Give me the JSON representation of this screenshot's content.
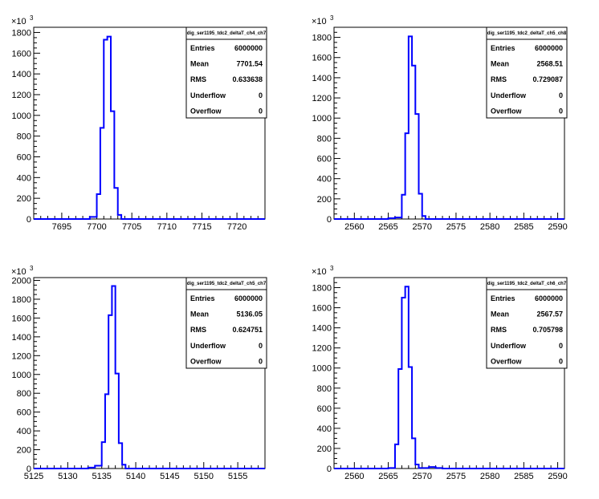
{
  "chart_data": [
    {
      "type": "bar",
      "title": "",
      "stats_title": "dig_ser1195_tdc2_deltaT_ch4_ch7",
      "stats": [
        {
          "label": "Entries",
          "value": "6000000"
        },
        {
          "label": "Mean",
          "value": "7701.54"
        },
        {
          "label": "RMS",
          "value": "0.633638"
        },
        {
          "label": "Underflow",
          "value": "0"
        },
        {
          "label": "Overflow",
          "value": "0"
        }
      ],
      "y_multiplier": "×10",
      "y_exponent": "3",
      "xlim": [
        7691,
        7724
      ],
      "ylim": [
        0,
        1850
      ],
      "xticks": [
        7695,
        7700,
        7705,
        7710,
        7715,
        7720
      ],
      "yticks": [
        0,
        200,
        400,
        600,
        800,
        1000,
        1200,
        1400,
        1600,
        1800
      ],
      "series": [
        {
          "values": [
            [
              7698,
              7699,
              0
            ],
            [
              7699,
              7700,
              20
            ],
            [
              7700,
              7700.5,
              240
            ],
            [
              7700.5,
              7701,
              880
            ],
            [
              7701,
              7701.5,
              1730
            ],
            [
              7701.5,
              7702,
              1760
            ],
            [
              7702,
              7702.5,
              1040
            ],
            [
              7702.5,
              7703,
              300
            ],
            [
              7703,
              7703.5,
              40
            ],
            [
              7703.5,
              7704,
              0
            ]
          ]
        }
      ]
    },
    {
      "type": "bar",
      "title": "",
      "stats_title": "dig_ser1195_tdc2_deltaT_ch5_ch8",
      "stats": [
        {
          "label": "Entries",
          "value": "6000000"
        },
        {
          "label": "Mean",
          "value": "2568.51"
        },
        {
          "label": "RMS",
          "value": "0.729087"
        },
        {
          "label": "Underflow",
          "value": "0"
        },
        {
          "label": "Overflow",
          "value": "0"
        }
      ],
      "y_multiplier": "×10",
      "y_exponent": "3",
      "xlim": [
        2557,
        2591
      ],
      "ylim": [
        0,
        1900
      ],
      "xticks": [
        2560,
        2565,
        2570,
        2575,
        2580,
        2585,
        2590
      ],
      "yticks": [
        0,
        200,
        400,
        600,
        800,
        1000,
        1200,
        1400,
        1600,
        1800
      ],
      "series": [
        {
          "values": [
            [
              2565,
              2566,
              8
            ],
            [
              2566,
              2567,
              15
            ],
            [
              2567,
              2567.5,
              240
            ],
            [
              2567.5,
              2568,
              850
            ],
            [
              2568,
              2568.5,
              1810
            ],
            [
              2568.5,
              2569,
              1520
            ],
            [
              2569,
              2569.5,
              1040
            ],
            [
              2569.5,
              2570,
              250
            ],
            [
              2570,
              2570.5,
              30
            ],
            [
              2570.5,
              2571,
              0
            ]
          ]
        }
      ]
    },
    {
      "type": "bar",
      "title": "",
      "stats_title": "dig_ser1195_tdc2_deltaT_ch5_ch7",
      "stats": [
        {
          "label": "Entries",
          "value": "6000000"
        },
        {
          "label": "Mean",
          "value": "5136.05"
        },
        {
          "label": "RMS",
          "value": "0.624751"
        },
        {
          "label": "Underflow",
          "value": "0"
        },
        {
          "label": "Overflow",
          "value": "0"
        }
      ],
      "y_multiplier": "×10",
      "y_exponent": "3",
      "xlim": [
        5125,
        5159
      ],
      "ylim": [
        0,
        2030
      ],
      "xticks": [
        5125,
        5130,
        5135,
        5140,
        5145,
        5150,
        5155
      ],
      "yticks": [
        0,
        200,
        400,
        600,
        800,
        1000,
        1200,
        1400,
        1600,
        1800,
        2000
      ],
      "series": [
        {
          "values": [
            [
              5133,
              5134,
              10
            ],
            [
              5134,
              5135,
              30
            ],
            [
              5135,
              5135.5,
              280
            ],
            [
              5135.5,
              5136,
              790
            ],
            [
              5136,
              5136.5,
              1630
            ],
            [
              5136.5,
              5137,
              1940
            ],
            [
              5137,
              5137.5,
              1010
            ],
            [
              5137.5,
              5138,
              270
            ],
            [
              5138,
              5138.5,
              40
            ],
            [
              5138.5,
              5139,
              0
            ]
          ]
        }
      ]
    },
    {
      "type": "bar",
      "title": "",
      "stats_title": "dig_ser1195_tdc2_deltaT_ch6_ch7",
      "stats": [
        {
          "label": "Entries",
          "value": "6000000"
        },
        {
          "label": "Mean",
          "value": "2567.57"
        },
        {
          "label": "RMS",
          "value": "0.705798"
        },
        {
          "label": "Underflow",
          "value": "0"
        },
        {
          "label": "Overflow",
          "value": "0"
        }
      ],
      "y_multiplier": "×10",
      "y_exponent": "3",
      "xlim": [
        2557,
        2591
      ],
      "ylim": [
        0,
        1900
      ],
      "xticks": [
        2560,
        2565,
        2570,
        2575,
        2580,
        2585,
        2590
      ],
      "yticks": [
        0,
        200,
        400,
        600,
        800,
        1000,
        1200,
        1400,
        1600,
        1800
      ],
      "series": [
        {
          "values": [
            [
              2565,
              2566,
              5
            ],
            [
              2566,
              2566.5,
              240
            ],
            [
              2566.5,
              2567,
              990
            ],
            [
              2567,
              2567.5,
              1700
            ],
            [
              2567.5,
              2568,
              1810
            ],
            [
              2568,
              2568.5,
              1010
            ],
            [
              2568.5,
              2569,
              300
            ],
            [
              2569,
              2569.5,
              40
            ],
            [
              2569.5,
              2570,
              5
            ],
            [
              2570,
              2571,
              5
            ],
            [
              2571,
              2572,
              15
            ],
            [
              2572,
              2573,
              5
            ],
            [
              2573,
              2574,
              0
            ]
          ]
        }
      ]
    }
  ]
}
